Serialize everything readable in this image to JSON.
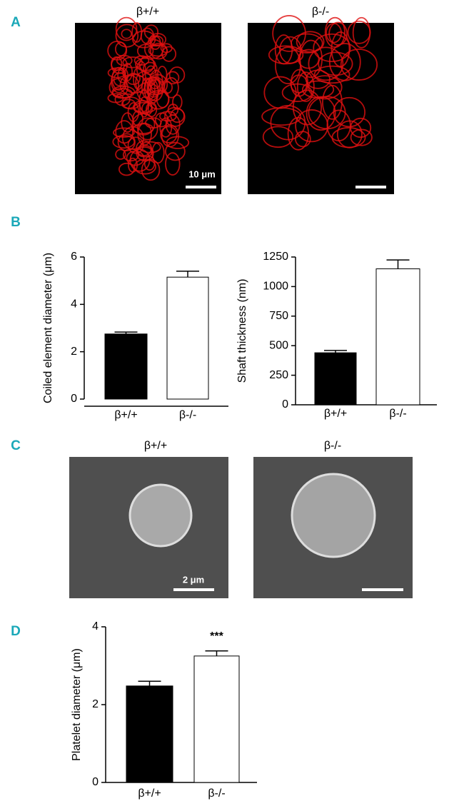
{
  "panel_labels": [
    "A",
    "B",
    "C",
    "D"
  ],
  "panel_a": {
    "image_labels": [
      "β+/+",
      "β-/-"
    ],
    "scale_bar": "10 μm"
  },
  "panel_c": {
    "image_labels": [
      "β+/+",
      "β-/-"
    ],
    "scale_bar": "2 μm"
  },
  "chart_data": [
    {
      "type": "bar",
      "y_label": "Coiled element diameter (μm)",
      "categories": [
        "β+/+",
        "β-/-"
      ],
      "values": [
        2.75,
        5.15
      ],
      "errors": [
        0.08,
        0.25
      ],
      "colors": [
        "#000000",
        "#ffffff"
      ],
      "ylim": [
        0,
        6
      ],
      "yticks": [
        0,
        2,
        4,
        6
      ]
    },
    {
      "type": "bar",
      "y_label": "Shaft thickness (nm)",
      "categories": [
        "β+/+",
        "β-/-"
      ],
      "values": [
        440,
        1150
      ],
      "errors": [
        20,
        75
      ],
      "colors": [
        "#000000",
        "#ffffff"
      ],
      "ylim": [
        0,
        1250
      ],
      "yticks": [
        0,
        250,
        500,
        750,
        1000,
        1250
      ]
    },
    {
      "type": "bar",
      "y_label": "Platelet diameter (μm)",
      "categories": [
        "β+/+",
        "β-/-"
      ],
      "values": [
        2.48,
        3.25
      ],
      "errors": [
        0.12,
        0.13
      ],
      "colors": [
        "#000000",
        "#ffffff"
      ],
      "ylim": [
        0,
        4
      ],
      "yticks": [
        0,
        2,
        4
      ],
      "annotation": "***"
    }
  ]
}
